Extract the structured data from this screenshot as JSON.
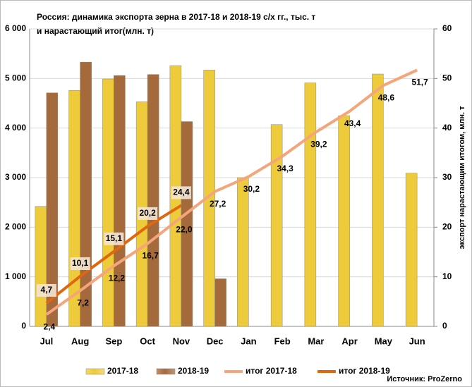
{
  "chart_data": {
    "type": "bar",
    "title": [
      "Россия: динамика экспорта зерна в 2017-18 и 2018-19 с/х гг., тыс. т",
      "и нарастающий итог(млн. т)"
    ],
    "y2_label": "экспорт нарастающим итогом, млн. т",
    "source": "Источник: ProZerno",
    "categories": [
      "Jul",
      "Aug",
      "Sep",
      "Oct",
      "Nov",
      "Dec",
      "Jan",
      "Feb",
      "Mar",
      "Apr",
      "May",
      "Jun"
    ],
    "series": [
      {
        "name": "2017-18",
        "color": "#eecb3a",
        "values": [
          2420,
          4760,
          4990,
          4530,
          5260,
          5170,
          3000,
          4070,
          4910,
          4250,
          5090,
          3090
        ]
      },
      {
        "name": "2018-19",
        "color": "#a46a3c",
        "values": [
          4710,
          5330,
          5060,
          5080,
          4130,
          960,
          null,
          null,
          null,
          null,
          null,
          null
        ]
      },
      {
        "name": "итог 2017-18",
        "color": "#f4a57a",
        "type": "line",
        "axis": "y2",
        "values": [
          2.4,
          7.2,
          12.2,
          16.7,
          22.0,
          27.2,
          30.2,
          34.3,
          39.2,
          43.4,
          48.6,
          51.7
        ],
        "value_labels": [
          "2,4",
          "7,2",
          "12,2",
          "16,7",
          "22,0",
          "27,2",
          "30,2",
          "34,3",
          "39,2",
          "43,4",
          "48,6",
          "51,7"
        ]
      },
      {
        "name": "итог 2018-19",
        "color": "#e0660f",
        "type": "line",
        "axis": "y2",
        "values": [
          4.7,
          10.1,
          15.1,
          20.2,
          24.4,
          null,
          null,
          null,
          null,
          null,
          null,
          null
        ],
        "value_labels": [
          "4,7",
          "10,1",
          "15,1",
          "20,2",
          "24,4",
          null,
          null,
          null,
          null,
          null,
          null,
          null
        ]
      }
    ],
    "ylim": [
      0,
      6000
    ],
    "yticks": [
      0,
      {
        "value": 1000,
        "label": "1 000"
      },
      {
        "value": 2000,
        "label": "2 000"
      },
      {
        "value": 3000,
        "label": "3 000"
      },
      {
        "value": 4000,
        "label": "4 000"
      },
      {
        "value": 5000,
        "label": "5 000"
      },
      {
        "value": 6000,
        "label": "6 000"
      }
    ],
    "y2lim": [
      0,
      60
    ],
    "y2ticks": [
      0,
      10,
      20,
      30,
      40,
      50,
      60
    ],
    "grid": true
  }
}
